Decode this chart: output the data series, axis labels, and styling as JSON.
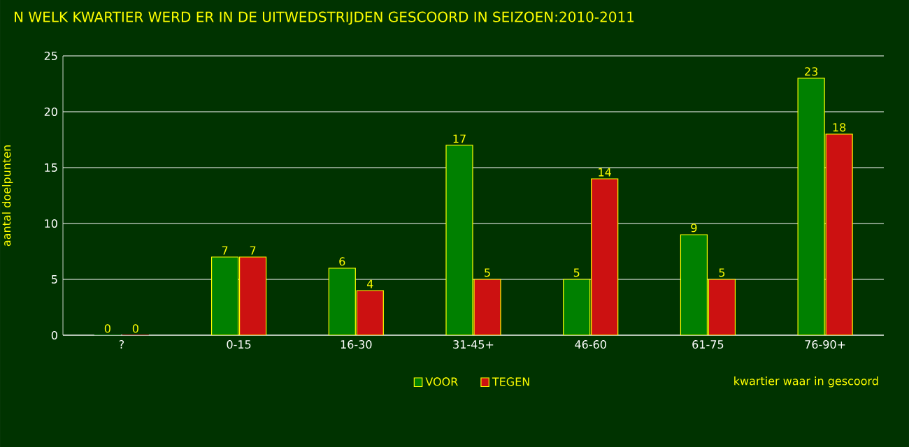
{
  "chart_data": {
    "type": "bar",
    "title": "N WELK KWARTIER WERD ER IN DE UITWEDSTRIJDEN GESCOORD IN SEIZOEN:2010-2011",
    "xlabel": "kwartier waar in gescoord",
    "ylabel": "aantal doelpunten",
    "categories": [
      "?",
      "0-15",
      "16-30",
      "31-45+",
      "46-60",
      "61-75",
      "76-90+"
    ],
    "series": [
      {
        "name": "VOOR",
        "color": "#008000",
        "values": [
          0,
          7,
          6,
          17,
          5,
          9,
          23
        ]
      },
      {
        "name": "TEGEN",
        "color": "#cc1111",
        "values": [
          0,
          7,
          4,
          5,
          14,
          5,
          18
        ]
      }
    ],
    "ylim": [
      0,
      25
    ],
    "yticks": [
      0,
      5,
      10,
      15,
      20,
      25
    ],
    "grid": "y",
    "legend": "bottom",
    "data_labels": true
  }
}
